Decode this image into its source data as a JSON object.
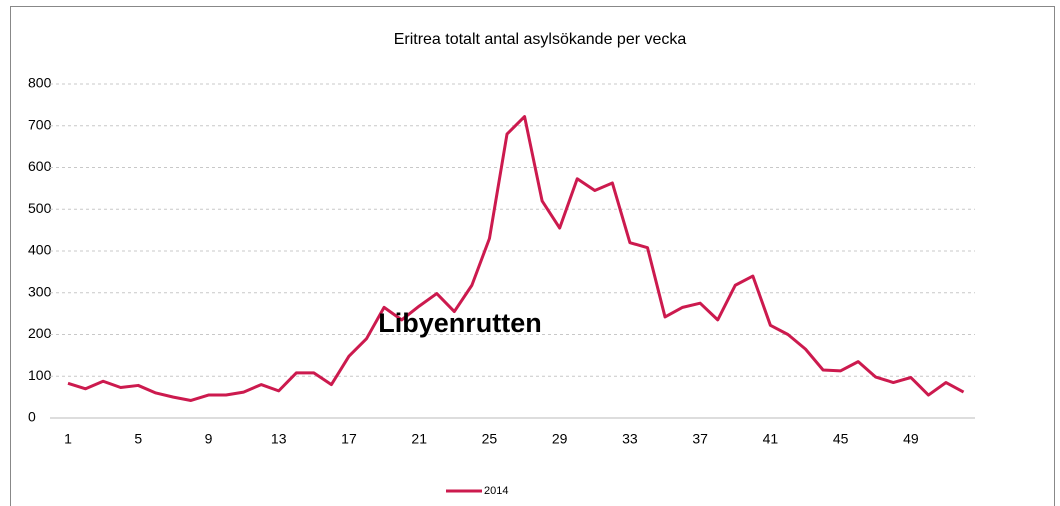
{
  "chart_data": {
    "type": "line",
    "title": "Eritrea totalt antal asylsökande per vecka",
    "annotation": "Libyenrutten",
    "categories": [
      "1",
      null,
      null,
      null,
      "5",
      null,
      null,
      null,
      "9",
      null,
      null,
      null,
      "13",
      null,
      null,
      null,
      "17",
      null,
      null,
      null,
      "21",
      null,
      null,
      null,
      "25",
      null,
      null,
      null,
      "29",
      null,
      null,
      null,
      "33",
      null,
      null,
      null,
      "37",
      null,
      null,
      null,
      "41",
      null,
      null,
      null,
      "45",
      null,
      null,
      null,
      "49",
      null,
      null,
      null
    ],
    "series": [
      {
        "name": "2014",
        "color": "#cc1a4e",
        "values": [
          83,
          70,
          88,
          73,
          78,
          60,
          50,
          42,
          55,
          55,
          62,
          80,
          65,
          108,
          108,
          80,
          148,
          190,
          265,
          235,
          268,
          298,
          255,
          318,
          430,
          680,
          722,
          520,
          455,
          573,
          545,
          563,
          420,
          408,
          242,
          265,
          275,
          235,
          318,
          340,
          222,
          200,
          165,
          115,
          113,
          135,
          98,
          85,
          97,
          55,
          85,
          62
        ]
      }
    ],
    "ylim": [
      0,
      800
    ],
    "yticks": [
      0,
      100,
      200,
      300,
      400,
      500,
      600,
      700,
      800
    ],
    "grid": true,
    "legend": "bottom"
  }
}
